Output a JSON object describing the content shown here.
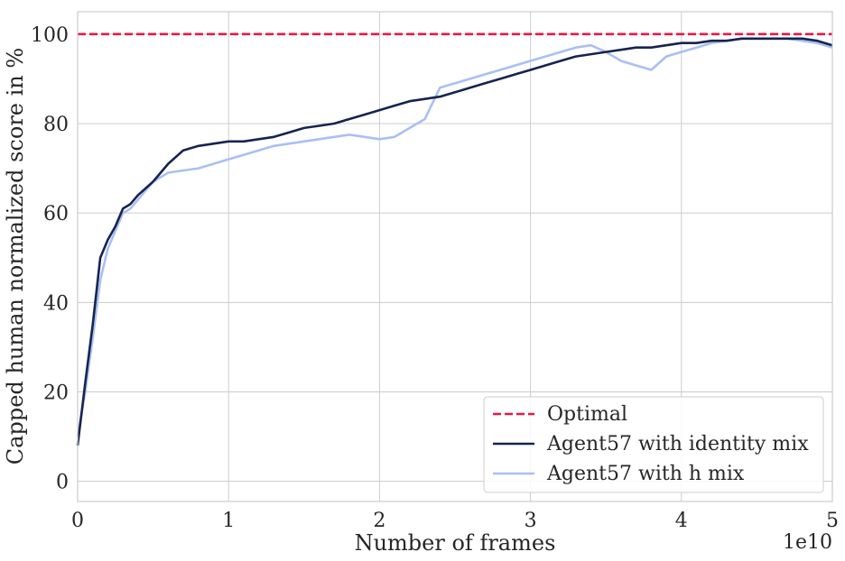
{
  "chart_data": {
    "type": "line",
    "title": "",
    "xlabel": "Number of  frames",
    "ylabel": "Capped human normalized score in %",
    "x_offset_label": "1e10",
    "xlim": [
      0,
      5
    ],
    "ylim": [
      -4.5,
      105
    ],
    "xticks": [
      0,
      1,
      2,
      3,
      4,
      5
    ],
    "yticks": [
      0,
      20,
      40,
      60,
      80,
      100
    ],
    "grid": true,
    "legend_position": "lower right",
    "colors": {
      "optimal": "#e8174a",
      "identity": "#16244f",
      "h_mix": "#a9bff5",
      "grid": "#cccccc",
      "spine": "#cccccc"
    },
    "series": [
      {
        "name": "Optimal",
        "style": "dashed",
        "x": [
          0,
          5
        ],
        "y": [
          100,
          100
        ]
      },
      {
        "name": "Agent57  with identity mix",
        "style": "solid",
        "x": [
          0,
          0.05,
          0.1,
          0.15,
          0.2,
          0.25,
          0.3,
          0.35,
          0.4,
          0.5,
          0.6,
          0.7,
          0.8,
          0.9,
          1.0,
          1.1,
          1.2,
          1.3,
          1.4,
          1.5,
          1.6,
          1.7,
          1.8,
          1.9,
          2.0,
          2.1,
          2.2,
          2.3,
          2.4,
          2.5,
          2.6,
          2.7,
          2.8,
          2.9,
          3.0,
          3.1,
          3.2,
          3.3,
          3.4,
          3.5,
          3.6,
          3.7,
          3.8,
          3.9,
          4.0,
          4.1,
          4.2,
          4.3,
          4.4,
          4.5,
          4.6,
          4.7,
          4.8,
          4.9,
          5.0
        ],
        "y": [
          8,
          22,
          35,
          50,
          54,
          57,
          61,
          62,
          64,
          67,
          71,
          74,
          75,
          75.5,
          76,
          76,
          76.5,
          77,
          78,
          79,
          79.5,
          80,
          81,
          82,
          83,
          84,
          85,
          85.5,
          86,
          87,
          88,
          89,
          90,
          91,
          92,
          93,
          94,
          95,
          95.5,
          96,
          96.5,
          97,
          97,
          97.5,
          98,
          98,
          98.5,
          98.5,
          99,
          99,
          99,
          99,
          99,
          98.5,
          97.5
        ]
      },
      {
        "name": "Agent57 with h mix",
        "style": "solid",
        "x": [
          0,
          0.05,
          0.1,
          0.15,
          0.2,
          0.25,
          0.3,
          0.35,
          0.4,
          0.5,
          0.6,
          0.7,
          0.8,
          0.9,
          1.0,
          1.1,
          1.2,
          1.3,
          1.4,
          1.5,
          1.6,
          1.7,
          1.8,
          1.9,
          2.0,
          2.1,
          2.2,
          2.3,
          2.4,
          2.5,
          2.6,
          2.7,
          2.8,
          2.9,
          3.0,
          3.1,
          3.2,
          3.3,
          3.4,
          3.5,
          3.6,
          3.7,
          3.8,
          3.9,
          4.0,
          4.1,
          4.2,
          4.3,
          4.4,
          4.5,
          4.6,
          4.7,
          4.8,
          4.9,
          5.0
        ],
        "y": [
          10,
          20,
          32,
          45,
          52,
          56,
          60,
          61,
          63,
          67,
          69,
          69.5,
          70,
          71,
          72,
          73,
          74,
          75,
          75.5,
          76,
          76.5,
          77,
          77.5,
          77,
          76.5,
          77,
          79,
          81,
          88,
          89,
          90,
          91,
          92,
          93,
          94,
          95,
          96,
          97,
          97.5,
          96,
          94,
          93,
          92,
          95,
          96,
          97,
          98,
          98.5,
          99,
          99,
          99,
          99,
          98.5,
          98,
          97
        ]
      }
    ]
  }
}
